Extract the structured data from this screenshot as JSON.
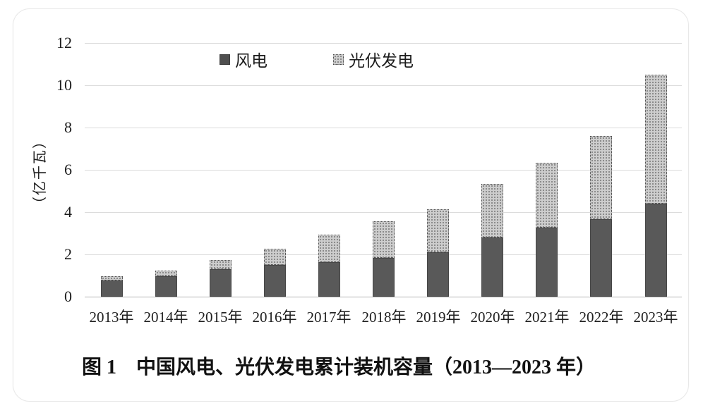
{
  "caption": "图 1　中国风电、光伏发电累计装机容量（2013—2023 年）",
  "y_axis": {
    "title": "（亿千瓦）",
    "ticks": [
      0,
      2,
      4,
      6,
      8,
      10,
      12
    ],
    "max": 12
  },
  "legend": {
    "items": [
      {
        "label": "风电",
        "swatch": "solid-dark-square-icon"
      },
      {
        "label": "光伏发电",
        "swatch": "dotted-pattern-square-icon"
      }
    ]
  },
  "colors": {
    "wind_fill": "#595959",
    "wind_border": "#474747",
    "solar_bg": "#cdcdcd",
    "solar_dot": "#8b8b8b",
    "gridline": "#dcdcdc",
    "axis_line": "#b3b3b3"
  },
  "chart_data": {
    "type": "bar",
    "stacked": true,
    "title": "图 1　中国风电、光伏发电累计装机容量（2013—2023 年）",
    "categories": [
      "2013年",
      "2014年",
      "2015年",
      "2016年",
      "2017年",
      "2018年",
      "2019年",
      "2020年",
      "2021年",
      "2022年",
      "2023年"
    ],
    "series": [
      {
        "name": "风电",
        "values": [
          0.77,
          0.96,
          1.29,
          1.49,
          1.64,
          1.84,
          2.1,
          2.81,
          3.28,
          3.65,
          4.41
        ]
      },
      {
        "name": "光伏发电",
        "values": [
          0.19,
          0.28,
          0.43,
          0.77,
          1.3,
          1.74,
          2.04,
          2.53,
          3.06,
          3.93,
          6.09
        ]
      }
    ],
    "xlabel": "",
    "ylabel": "（亿千瓦）",
    "ylim": [
      0,
      12
    ],
    "yticks": [
      0,
      2,
      4,
      6,
      8,
      10,
      12
    ],
    "legend_position": "top",
    "grid": true
  }
}
